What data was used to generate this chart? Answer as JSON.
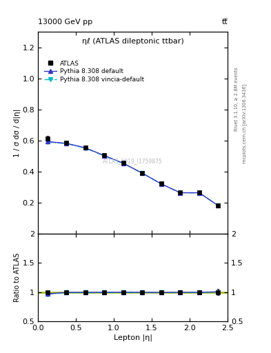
{
  "title_left": "13000 GeV pp",
  "title_right": "tt̅",
  "plot_title": "ηℓ (ATLAS dileptonic ttbar)",
  "xlabel": "Lepton |η|",
  "ylabel_main": "1 / σ dσ / d|η|",
  "ylabel_ratio": "Ratio to ATLAS",
  "right_label_top": "Rivet 3.1.10, ≥ 2.8M events",
  "right_label_bot": "mcplots.cern.ch [arXiv:1306.3436]",
  "watermark": "ATLAS_2019_I1759875",
  "xlim": [
    0,
    2.5
  ],
  "ylim_main": [
    0,
    1.3
  ],
  "ylim_ratio": [
    0.5,
    2.0
  ],
  "yticks_main": [
    0.2,
    0.4,
    0.6,
    0.8,
    1.0,
    1.2
  ],
  "yticks_ratio": [
    0.5,
    1.0,
    1.5,
    2.0
  ],
  "xticks": [
    0.0,
    0.5,
    1.0,
    1.5,
    2.0,
    2.5
  ],
  "atlas_x": [
    0.125,
    0.375,
    0.625,
    0.875,
    1.125,
    1.375,
    1.625,
    1.875,
    2.125,
    2.375
  ],
  "atlas_y": [
    0.613,
    0.585,
    0.556,
    0.505,
    0.455,
    0.392,
    0.323,
    0.265,
    0.265,
    0.18
  ],
  "atlas_yerr": [
    0.015,
    0.012,
    0.012,
    0.01,
    0.01,
    0.009,
    0.009,
    0.009,
    0.009,
    0.009
  ],
  "py308_x": [
    0.125,
    0.375,
    0.625,
    0.875,
    1.125,
    1.375,
    1.625,
    1.875,
    2.125,
    2.375
  ],
  "py308_y": [
    0.593,
    0.582,
    0.553,
    0.503,
    0.454,
    0.39,
    0.321,
    0.264,
    0.264,
    0.181
  ],
  "py308_color": "#3333cc",
  "py308_style": "-",
  "py308_marker": "^",
  "vincia_x": [
    0.125,
    0.375,
    0.625,
    0.875,
    1.125,
    1.375,
    1.625,
    1.875,
    2.125,
    2.375
  ],
  "vincia_y": [
    0.59,
    0.58,
    0.551,
    0.501,
    0.452,
    0.389,
    0.32,
    0.263,
    0.263,
    0.18
  ],
  "vincia_color": "#00bbcc",
  "vincia_style": "-.",
  "vincia_marker": "v",
  "ratio_py308_y": [
    0.967,
    0.995,
    0.995,
    0.996,
    0.998,
    0.995,
    0.993,
    0.996,
    0.996,
    1.005
  ],
  "ratio_vincia_y": [
    0.962,
    0.991,
    0.991,
    0.992,
    0.993,
    0.992,
    0.99,
    0.993,
    0.993,
    1.001
  ],
  "ref_line_color": "#99bb00",
  "background_color": "#ffffff"
}
